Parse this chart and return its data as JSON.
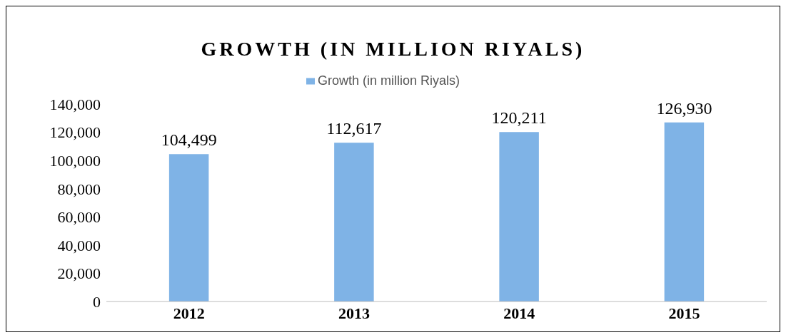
{
  "chart_data": {
    "type": "bar",
    "title": "GROWTH (IN MILLION RIYALS)",
    "categories": [
      "2012",
      "2013",
      "2014",
      "2015"
    ],
    "series": [
      {
        "name": "Growth (in million Riyals)",
        "color": "#7fb3e6",
        "values": [
          104499,
          112617,
          120211,
          126930
        ]
      }
    ],
    "ylim": [
      0,
      140000
    ],
    "yticks": [
      {
        "value": 0,
        "label": "0"
      },
      {
        "value": 20000,
        "label": "20,000"
      },
      {
        "value": 40000,
        "label": "40,000"
      },
      {
        "value": 60000,
        "label": "60,000"
      },
      {
        "value": 80000,
        "label": "80,000"
      },
      {
        "value": 100000,
        "label": "100,000"
      },
      {
        "value": 120000,
        "label": "120,000"
      },
      {
        "value": 140000,
        "label": "140,000"
      }
    ],
    "value_labels": [
      "104,499",
      "112,617",
      "120,211",
      "126,930"
    ],
    "legend": "top",
    "grid": false
  }
}
